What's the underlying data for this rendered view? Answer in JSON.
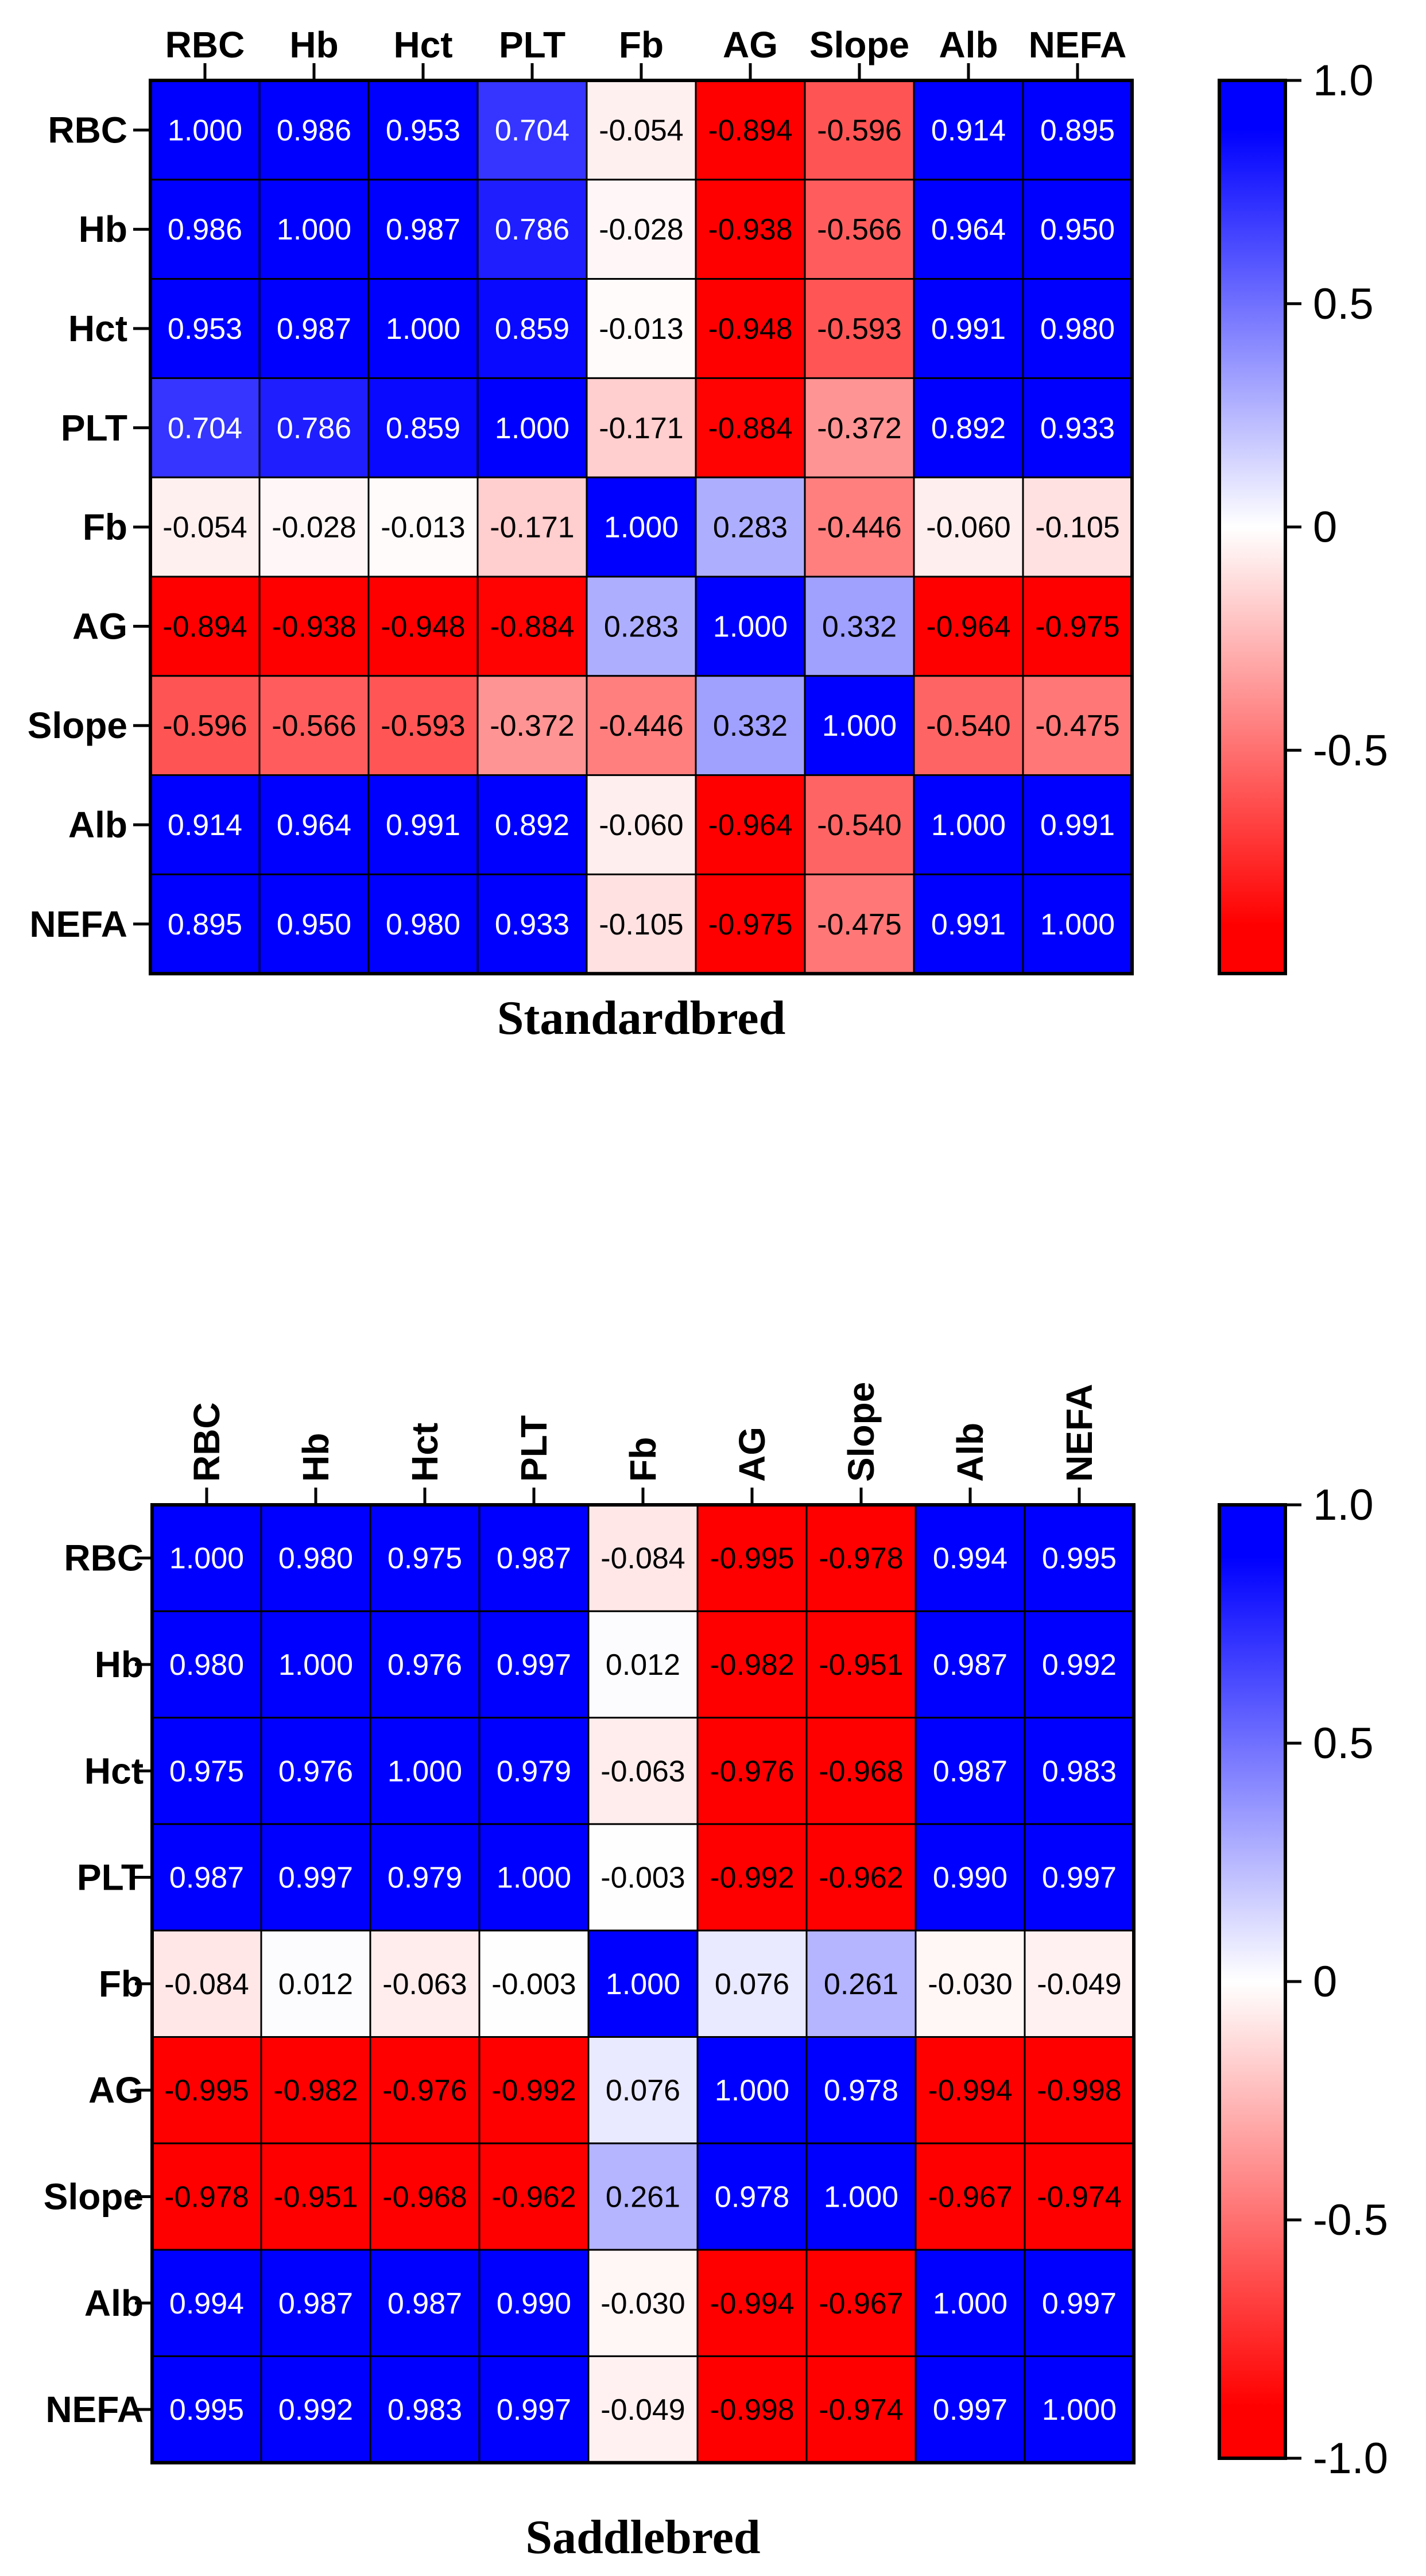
{
  "chart_data": [
    {
      "type": "heatmap",
      "title": "Standardbred",
      "x_labels_rotated": false,
      "rows": [
        "RBC",
        "Hb",
        "Hct",
        "PLT",
        "Fb",
        "AG",
        "Slope",
        "Alb",
        "NEFA"
      ],
      "cols": [
        "RBC",
        "Hb",
        "Hct",
        "PLT",
        "Fb",
        "AG",
        "Slope",
        "Alb",
        "NEFA"
      ],
      "values": [
        [
          1.0,
          0.986,
          0.953,
          0.704,
          -0.054,
          -0.894,
          -0.596,
          0.914,
          0.895
        ],
        [
          0.986,
          1.0,
          0.987,
          0.786,
          -0.028,
          -0.938,
          -0.566,
          0.964,
          0.95
        ],
        [
          0.953,
          0.987,
          1.0,
          0.859,
          -0.013,
          -0.948,
          -0.593,
          0.991,
          0.98
        ],
        [
          0.704,
          0.786,
          0.859,
          1.0,
          -0.171,
          -0.884,
          -0.372,
          0.892,
          0.933
        ],
        [
          -0.054,
          -0.028,
          -0.013,
          -0.171,
          1.0,
          0.283,
          -0.446,
          -0.06,
          -0.105
        ],
        [
          -0.894,
          -0.938,
          -0.948,
          -0.884,
          0.283,
          1.0,
          0.332,
          -0.964,
          -0.975
        ],
        [
          -0.596,
          -0.566,
          -0.593,
          -0.372,
          -0.446,
          0.332,
          1.0,
          -0.54,
          -0.475
        ],
        [
          0.914,
          0.964,
          0.991,
          0.892,
          -0.06,
          -0.964,
          -0.54,
          1.0,
          0.991
        ],
        [
          0.895,
          0.95,
          0.98,
          0.933,
          -0.105,
          -0.975,
          -0.475,
          0.991,
          1.0
        ]
      ],
      "colorbar": {
        "ticks": [
          {
            "value": 1.0,
            "label": "1.0"
          },
          {
            "value": 0.5,
            "label": "0.5"
          },
          {
            "value": 0.0,
            "label": "0"
          },
          {
            "value": -0.5,
            "label": "-0.5"
          }
        ],
        "range": [
          -1.0,
          1.0
        ]
      }
    },
    {
      "type": "heatmap",
      "title": "Saddlebred",
      "x_labels_rotated": true,
      "rows": [
        "RBC",
        "Hb",
        "Hct",
        "PLT",
        "Fb",
        "AG",
        "Slope",
        "Alb",
        "NEFA"
      ],
      "cols": [
        "RBC",
        "Hb",
        "Hct",
        "PLT",
        "Fb",
        "AG",
        "Slope",
        "Alb",
        "NEFA"
      ],
      "values": [
        [
          1.0,
          0.98,
          0.975,
          0.987,
          -0.084,
          -0.995,
          -0.978,
          0.994,
          0.995
        ],
        [
          0.98,
          1.0,
          0.976,
          0.997,
          0.012,
          -0.982,
          -0.951,
          0.987,
          0.992
        ],
        [
          0.975,
          0.976,
          1.0,
          0.979,
          -0.063,
          -0.976,
          -0.968,
          0.987,
          0.983
        ],
        [
          0.987,
          0.997,
          0.979,
          1.0,
          -0.003,
          -0.992,
          -0.962,
          0.99,
          0.997
        ],
        [
          -0.084,
          0.012,
          -0.063,
          -0.003,
          1.0,
          0.076,
          0.261,
          -0.03,
          -0.049
        ],
        [
          -0.995,
          -0.982,
          -0.976,
          -0.992,
          0.076,
          1.0,
          0.978,
          -0.994,
          -0.998
        ],
        [
          -0.978,
          -0.951,
          -0.968,
          -0.962,
          0.261,
          0.978,
          1.0,
          -0.967,
          -0.974
        ],
        [
          0.994,
          0.987,
          0.987,
          0.99,
          -0.03,
          -0.994,
          -0.967,
          1.0,
          0.997
        ],
        [
          0.995,
          0.992,
          0.983,
          0.997,
          -0.049,
          -0.998,
          -0.974,
          0.997,
          1.0
        ]
      ],
      "colorbar": {
        "ticks": [
          {
            "value": 1.0,
            "label": "1.0"
          },
          {
            "value": 0.5,
            "label": "0.5"
          },
          {
            "value": 0.0,
            "label": "0"
          },
          {
            "value": -0.5,
            "label": "-0.5"
          },
          {
            "value": -1.0,
            "label": "-1.0"
          }
        ],
        "range": [
          -1.0,
          1.0
        ]
      }
    }
  ],
  "colors": {
    "positive": "#0000ff",
    "zero": "#ffffff",
    "negative": "#ff0000",
    "saturation_threshold": 0.89
  }
}
